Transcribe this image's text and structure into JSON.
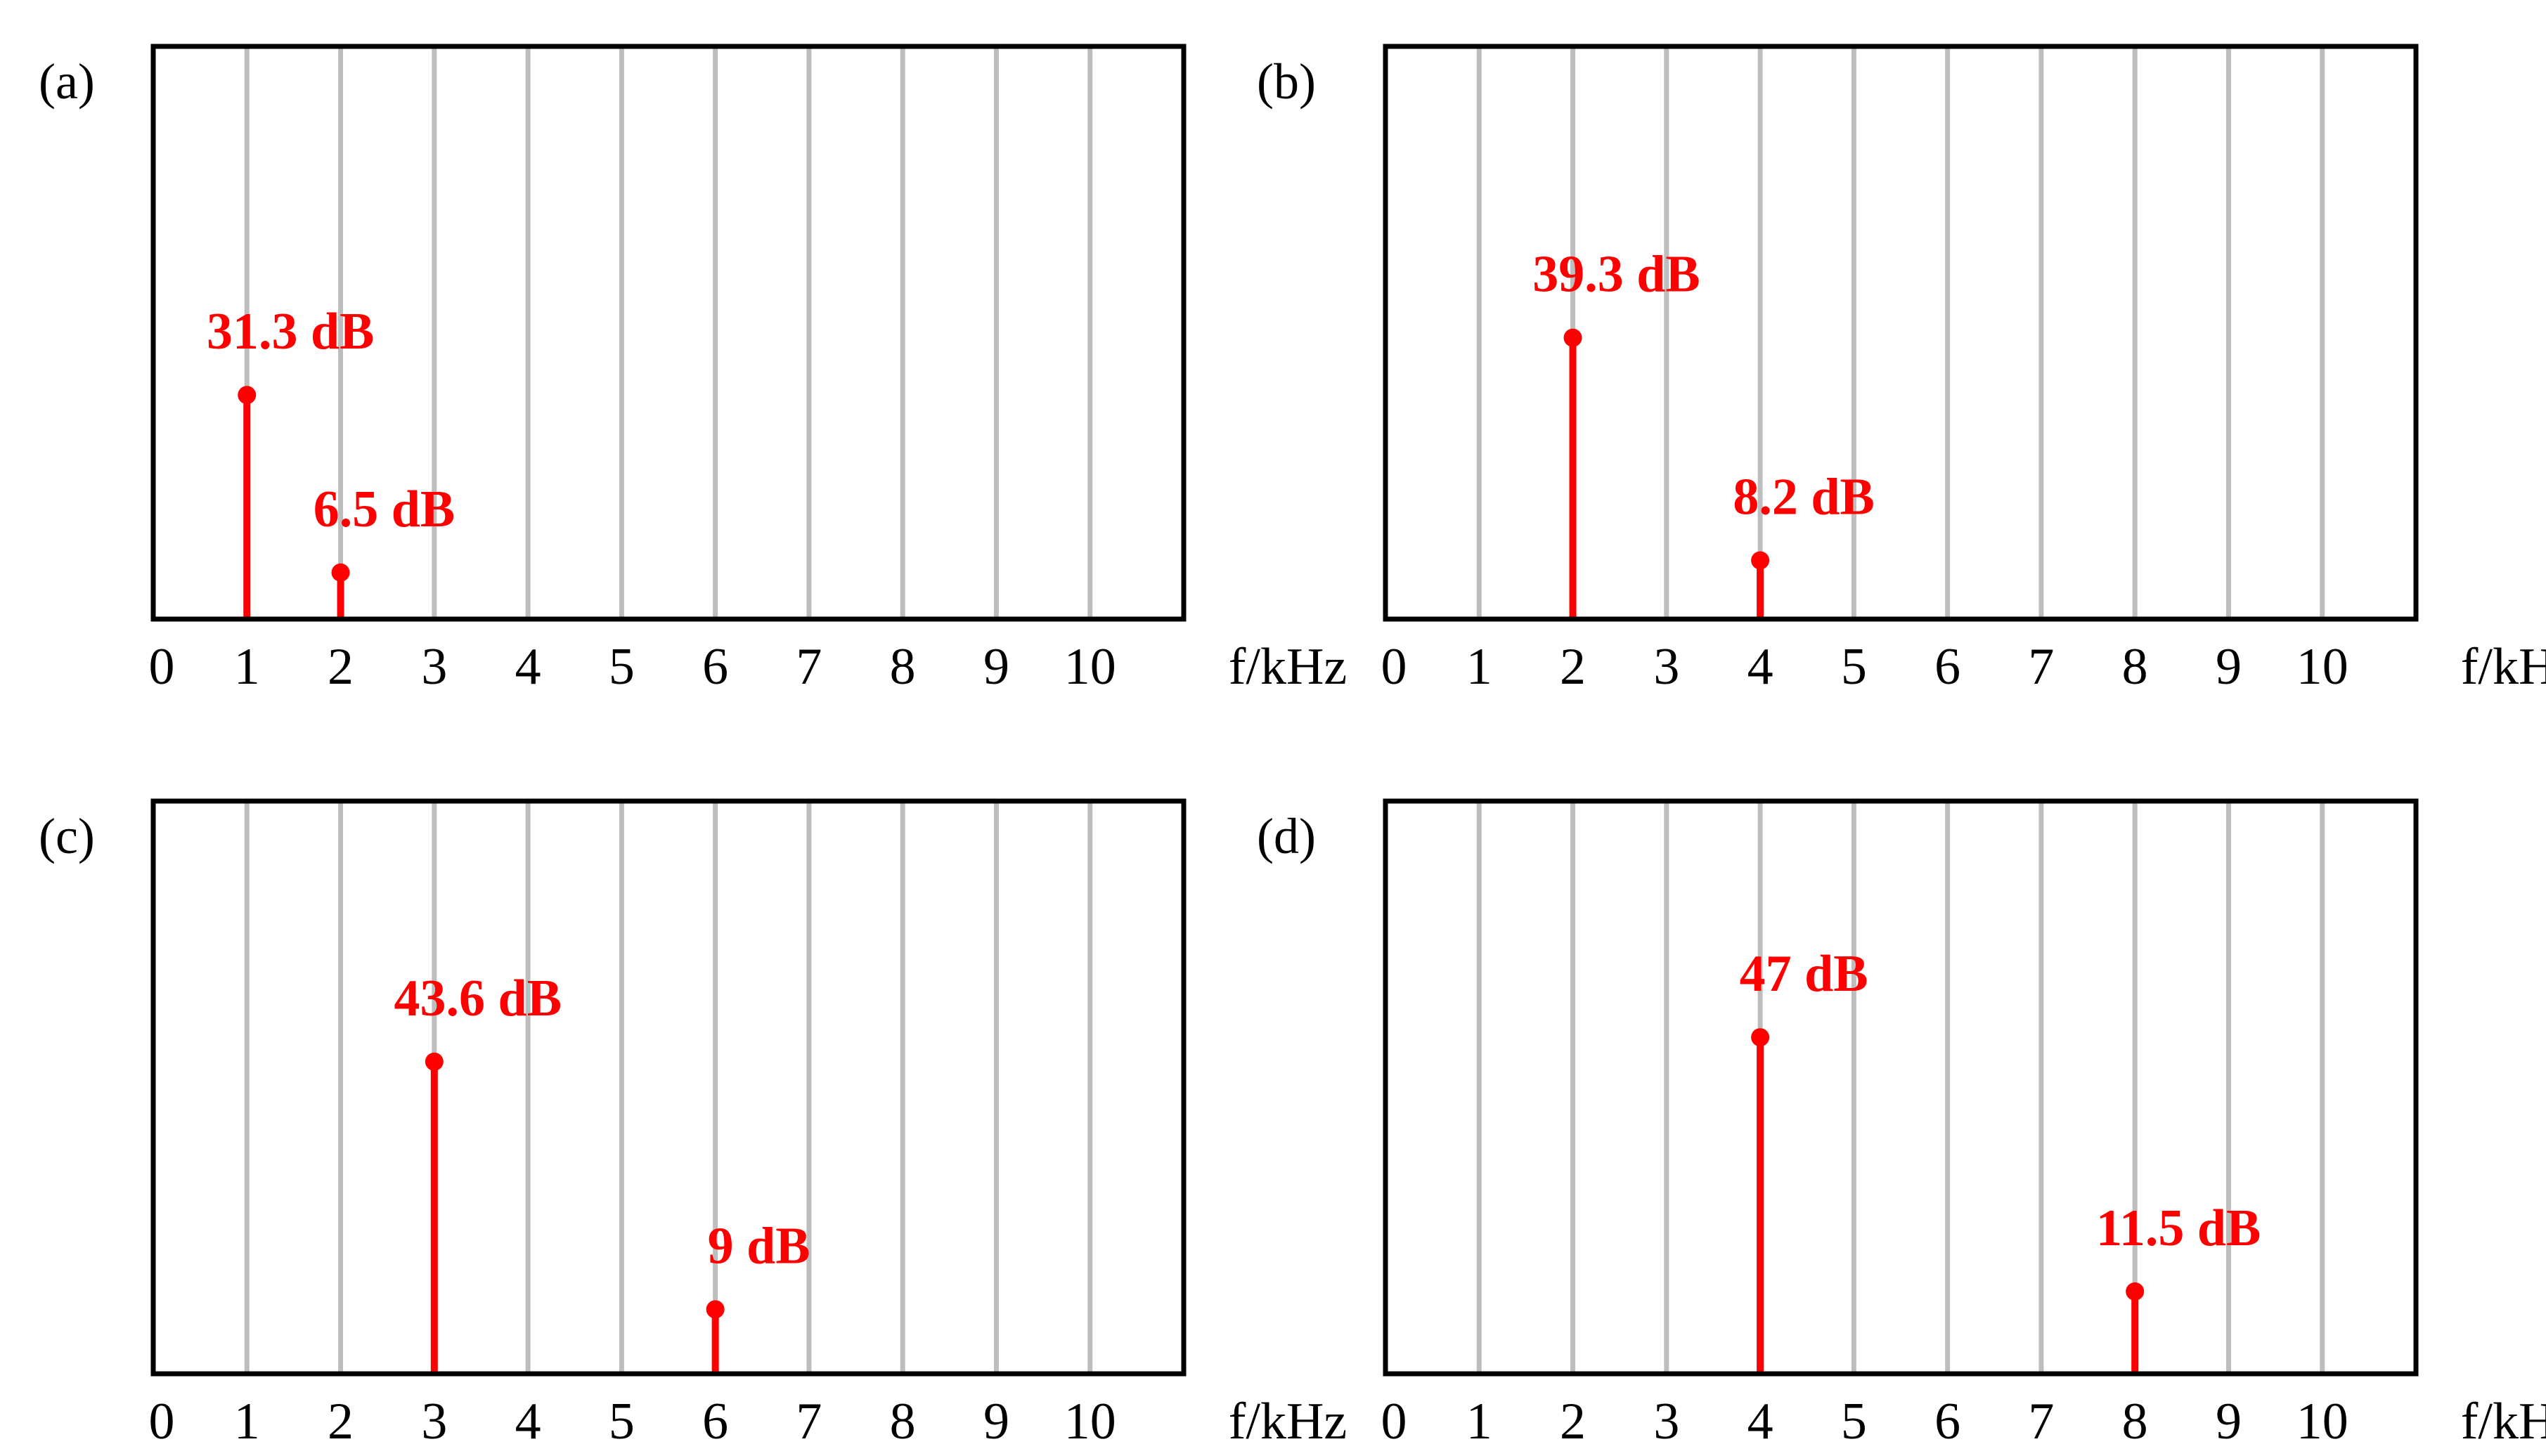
{
  "colors": {
    "stem": "#ff0000",
    "grid": "#bdbdbd",
    "frame": "#000000"
  },
  "chart_data": [
    {
      "type": "stem",
      "panel_label": "(a)",
      "xlabel": "f/kHz",
      "x_ticks": [
        "0",
        "1",
        "2",
        "3",
        "4",
        "5",
        "6",
        "7",
        "8",
        "9",
        "10"
      ],
      "xlim": [
        0,
        11
      ],
      "ylim": [
        0,
        80
      ],
      "grid": true,
      "x": [
        1,
        2
      ],
      "values": [
        31.3,
        6.5
      ],
      "labels": [
        "31.3 dB",
        "6.5 dB"
      ]
    },
    {
      "type": "stem",
      "panel_label": "(b)",
      "xlabel": "f/kHz",
      "x_ticks": [
        "0",
        "1",
        "2",
        "3",
        "4",
        "5",
        "6",
        "7",
        "8",
        "9",
        "10"
      ],
      "xlim": [
        0,
        11
      ],
      "ylim": [
        0,
        80
      ],
      "grid": true,
      "x": [
        2,
        4
      ],
      "values": [
        39.3,
        8.2
      ],
      "labels": [
        "39.3 dB",
        "8.2 dB"
      ]
    },
    {
      "type": "stem",
      "panel_label": "(c)",
      "xlabel": "f/kHz",
      "x_ticks": [
        "0",
        "1",
        "2",
        "3",
        "4",
        "5",
        "6",
        "7",
        "8",
        "9",
        "10"
      ],
      "xlim": [
        0,
        11
      ],
      "ylim": [
        0,
        80
      ],
      "grid": true,
      "x": [
        3,
        6
      ],
      "values": [
        43.6,
        9
      ],
      "labels": [
        "43.6 dB",
        "9 dB"
      ]
    },
    {
      "type": "stem",
      "panel_label": "(d)",
      "xlabel": "f/kHz",
      "x_ticks": [
        "0",
        "1",
        "2",
        "3",
        "4",
        "5",
        "6",
        "7",
        "8",
        "9",
        "10"
      ],
      "xlim": [
        0,
        11
      ],
      "ylim": [
        0,
        80
      ],
      "grid": true,
      "x": [
        4,
        8
      ],
      "values": [
        47,
        11.5
      ],
      "labels": [
        "47 dB",
        "11.5 dB"
      ]
    }
  ]
}
